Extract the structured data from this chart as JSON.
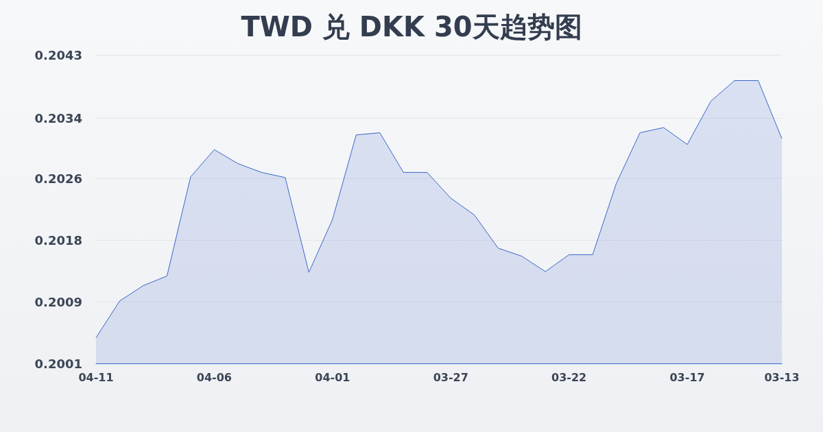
{
  "chart_data": {
    "type": "area",
    "title": "TWD 兑 DKK 30天趋势图",
    "categories": [
      "04-11",
      null,
      null,
      null,
      null,
      "04-06",
      null,
      null,
      null,
      null,
      "04-01",
      null,
      null,
      null,
      null,
      "03-27",
      null,
      null,
      null,
      null,
      "03-22",
      null,
      null,
      null,
      null,
      "03-17",
      null,
      null,
      null,
      "03-13"
    ],
    "series": [
      {
        "color": "#3a66c8",
        "values": [
          0.20045,
          0.20095,
          0.20116,
          0.20129,
          0.20264,
          0.20301,
          0.20282,
          0.2027,
          0.20263,
          0.20134,
          0.20206,
          0.20321,
          0.20324,
          0.2027,
          0.2027,
          0.20235,
          0.20212,
          0.20167,
          0.20156,
          0.20135,
          0.20158,
          0.20158,
          0.20255,
          0.20324,
          0.20331,
          0.20308,
          0.20367,
          0.20395,
          0.20395,
          0.20316
        ]
      }
    ],
    "ylim": [
      0.2001,
      0.2043
    ],
    "yticks": [
      0.2001,
      {
        "value": 0.20094,
        "label": "0.2009"
      },
      {
        "value": 0.20178,
        "label": "0.2018"
      },
      {
        "value": 0.20262,
        "label": "0.2026"
      },
      {
        "value": 0.20344,
        "label": "0.2034"
      },
      0.2043
    ],
    "grid": "y",
    "marker": "none",
    "line_style": "solid"
  }
}
